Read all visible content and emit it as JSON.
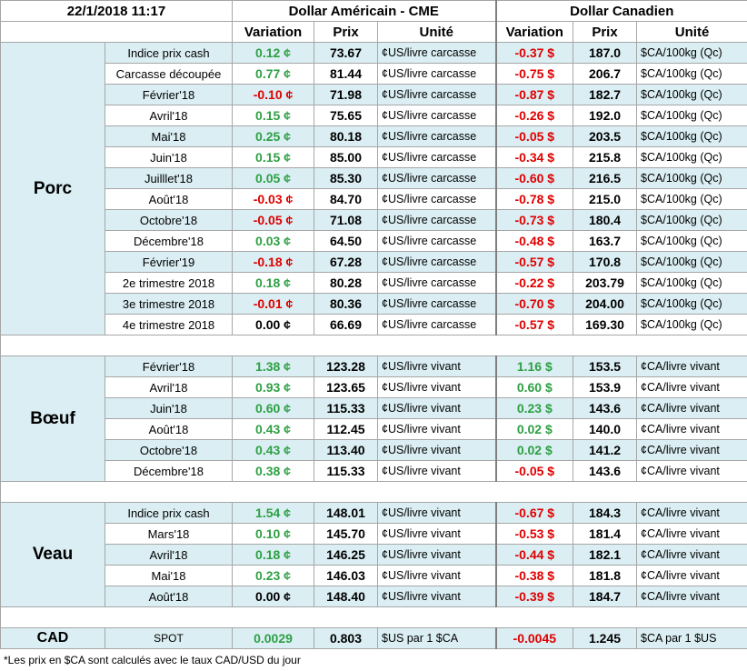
{
  "header": {
    "date": "22/1/2018 11:17",
    "usd_title": "Dollar Américain - CME",
    "cad_title": "Dollar Canadien",
    "columns": [
      "Variation",
      "Prix",
      "Unité",
      "Variation",
      "Prix",
      "Unité"
    ]
  },
  "groups": [
    {
      "name": "Porc",
      "rows": [
        [
          "Indice prix cash",
          "0.12 ¢",
          "73.67",
          "¢US/livre carcasse",
          "-0.37 $",
          "187.0",
          "$CA/100kg (Qc)"
        ],
        [
          "Carcasse découpée",
          "0.77 ¢",
          "81.44",
          "¢US/livre carcasse",
          "-0.75 $",
          "206.7",
          "$CA/100kg (Qc)"
        ],
        [
          "Février'18",
          "-0.10 ¢",
          "71.98",
          "¢US/livre carcasse",
          "-0.87 $",
          "182.7",
          "$CA/100kg (Qc)"
        ],
        [
          "Avril'18",
          "0.15 ¢",
          "75.65",
          "¢US/livre carcasse",
          "-0.26 $",
          "192.0",
          "$CA/100kg (Qc)"
        ],
        [
          "Mai'18",
          "0.25 ¢",
          "80.18",
          "¢US/livre carcasse",
          "-0.05 $",
          "203.5",
          "$CA/100kg (Qc)"
        ],
        [
          "Juin'18",
          "0.15 ¢",
          "85.00",
          "¢US/livre carcasse",
          "-0.34 $",
          "215.8",
          "$CA/100kg (Qc)"
        ],
        [
          "Juilllet'18",
          "0.05 ¢",
          "85.30",
          "¢US/livre carcasse",
          "-0.60 $",
          "216.5",
          "$CA/100kg (Qc)"
        ],
        [
          "Août'18",
          "-0.03 ¢",
          "84.70",
          "¢US/livre carcasse",
          "-0.78 $",
          "215.0",
          "$CA/100kg (Qc)"
        ],
        [
          "Octobre'18",
          "-0.05 ¢",
          "71.08",
          "¢US/livre carcasse",
          "-0.73 $",
          "180.4",
          "$CA/100kg (Qc)"
        ],
        [
          "Décembre'18",
          "0.03 ¢",
          "64.50",
          "¢US/livre carcasse",
          "-0.48 $",
          "163.7",
          "$CA/100kg (Qc)"
        ],
        [
          "Février'19",
          "-0.18 ¢",
          "67.28",
          "¢US/livre carcasse",
          "-0.57 $",
          "170.8",
          "$CA/100kg (Qc)"
        ],
        [
          "2e trimestre 2018",
          "0.18 ¢",
          "80.28",
          "¢US/livre carcasse",
          "-0.22 $",
          "203.79",
          "$CA/100kg (Qc)"
        ],
        [
          "3e trimestre 2018",
          "-0.01 ¢",
          "80.36",
          "¢US/livre carcasse",
          "-0.70 $",
          "204.00",
          "$CA/100kg (Qc)"
        ],
        [
          "4e trimestre 2018",
          "0.00 ¢",
          "66.69",
          "¢US/livre carcasse",
          "-0.57 $",
          "169.30",
          "$CA/100kg (Qc)"
        ]
      ]
    },
    {
      "name": "Bœuf",
      "rows": [
        [
          "Février'18",
          "1.38 ¢",
          "123.28",
          "¢US/livre vivant",
          "1.16 $",
          "153.5",
          "¢CA/livre vivant"
        ],
        [
          "Avril'18",
          "0.93 ¢",
          "123.65",
          "¢US/livre vivant",
          "0.60 $",
          "153.9",
          "¢CA/livre vivant"
        ],
        [
          "Juin'18",
          "0.60 ¢",
          "115.33",
          "¢US/livre vivant",
          "0.23 $",
          "143.6",
          "¢CA/livre vivant"
        ],
        [
          "Août'18",
          "0.43 ¢",
          "112.45",
          "¢US/livre vivant",
          "0.02 $",
          "140.0",
          "¢CA/livre vivant"
        ],
        [
          "Octobre'18",
          "0.43 ¢",
          "113.40",
          "¢US/livre vivant",
          "0.02 $",
          "141.2",
          "¢CA/livre vivant"
        ],
        [
          "Décembre'18",
          "0.38 ¢",
          "115.33",
          "¢US/livre vivant",
          "-0.05 $",
          "143.6",
          "¢CA/livre vivant"
        ]
      ]
    },
    {
      "name": "Veau",
      "rows": [
        [
          "Indice prix cash",
          "1.54 ¢",
          "148.01",
          "¢US/livre vivant",
          "-0.67 $",
          "184.3",
          "¢CA/livre vivant"
        ],
        [
          "Mars'18",
          "0.10 ¢",
          "145.70",
          "¢US/livre vivant",
          "-0.53 $",
          "181.4",
          "¢CA/livre vivant"
        ],
        [
          "Avril'18",
          "0.18 ¢",
          "146.25",
          "¢US/livre vivant",
          "-0.44 $",
          "182.1",
          "¢CA/livre vivant"
        ],
        [
          "Mai'18",
          "0.23 ¢",
          "146.03",
          "¢US/livre vivant",
          "-0.38 $",
          "181.8",
          "¢CA/livre vivant"
        ],
        [
          "Août'18",
          "0.00 ¢",
          "148.40",
          "¢US/livre vivant",
          "-0.39 $",
          "184.7",
          "¢CA/livre vivant"
        ]
      ]
    }
  ],
  "cad": [
    "CAD",
    "SPOT",
    "0.0029",
    "0.803",
    "$US par 1 $CA",
    "-0.0045",
    "1.245",
    "$CA par 1 $US"
  ],
  "footnote": "*Les  prix en $CA sont calculés avec le taux CAD/USD du jour"
}
